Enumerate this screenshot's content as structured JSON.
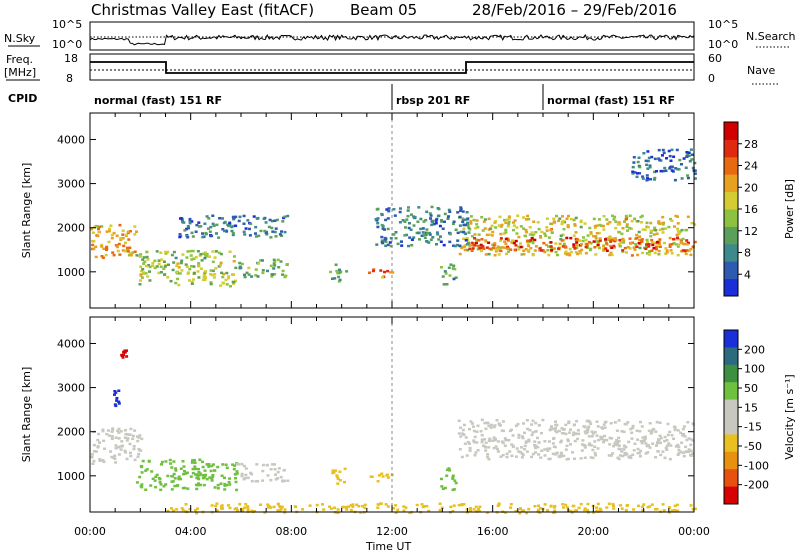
{
  "header": {
    "station": "Christmas Valley East (fitACF)",
    "beam": "Beam 05",
    "dates": "28/Feb/2016 – 29/Feb/2016"
  },
  "strip_sky": {
    "left_label": "N.Sky",
    "right_label": "N.Search",
    "left_top": "10^5",
    "left_bot": "10^0",
    "right_top": "10^5",
    "right_bot": "10^0"
  },
  "strip_freq": {
    "left_label": "Freq.",
    "left_unit": "[MHz]",
    "left_top": "18",
    "left_bot": "8",
    "right_label": "Nave",
    "right_top": "60",
    "right_bot": "0"
  },
  "cpid": {
    "label": "CPID",
    "modes": [
      {
        "name": "normal (fast) 151 RF",
        "start_h": 0,
        "end_h": 12
      },
      {
        "name": "rbsp 201 RF",
        "start_h": 12,
        "end_h": 18
      },
      {
        "name": "normal (fast) 151 RF",
        "start_h": 18,
        "end_h": 24
      }
    ]
  },
  "x_axis": {
    "label": "Time UT",
    "ticks": [
      "00:00",
      "04:00",
      "08:00",
      "12:00",
      "16:00",
      "20:00",
      "00:00"
    ]
  },
  "chart_data": [
    {
      "type": "heatmap",
      "panel": "power",
      "ylabel": "Slant Range [km]",
      "yticks": [
        1000,
        2000,
        3000,
        4000
      ],
      "ylim": [
        180,
        4600
      ],
      "xlim_hours": [
        0,
        24
      ],
      "colorbar": {
        "label": "Power [dB]",
        "ticks": [
          "4",
          "8",
          "12",
          "16",
          "20",
          "24",
          "28"
        ],
        "colors": [
          "#1a2fd8",
          "#2c5bb0",
          "#3c8a8c",
          "#5aa05a",
          "#8cc240",
          "#d4cc30",
          "#e8a020",
          "#e86a10",
          "#e02a10",
          "#d00000"
        ]
      },
      "regions": [
        {
          "t": [
            0.0,
            1.8
          ],
          "r": [
            1300,
            2100
          ],
          "level": 0.65
        },
        {
          "t": [
            1.8,
            5.8
          ],
          "r": [
            700,
            1500
          ],
          "level": 0.45
        },
        {
          "t": [
            5.8,
            7.8
          ],
          "r": [
            900,
            1300
          ],
          "level": 0.35
        },
        {
          "t": [
            9.5,
            10.2
          ],
          "r": [
            800,
            1200
          ],
          "level": 0.35
        },
        {
          "t": [
            11.0,
            12.0
          ],
          "r": [
            900,
            1100
          ],
          "level": 0.75
        },
        {
          "t": [
            13.9,
            14.5
          ],
          "r": [
            700,
            1200
          ],
          "level": 0.3
        },
        {
          "t": [
            14.6,
            24.0
          ],
          "r": [
            1400,
            2300
          ],
          "level": 0.55
        },
        {
          "t": [
            15.0,
            24.0
          ],
          "r": [
            1500,
            1800
          ],
          "level": 0.85
        },
        {
          "t": [
            3.5,
            8.0
          ],
          "r": [
            1800,
            2300
          ],
          "level": 0.2
        },
        {
          "t": [
            11.3,
            15.0
          ],
          "r": [
            1600,
            2500
          ],
          "level": 0.2
        },
        {
          "t": [
            21.5,
            24.0
          ],
          "r": [
            3100,
            3800
          ],
          "level": 0.15
        }
      ]
    },
    {
      "type": "heatmap",
      "panel": "velocity",
      "ylabel": "Slant Range [km]",
      "yticks": [
        1000,
        2000,
        3000,
        4000
      ],
      "ylim": [
        180,
        4600
      ],
      "xlim_hours": [
        0,
        24
      ],
      "colorbar": {
        "label": "Velocity [m s⁻¹]",
        "ticks": [
          "200",
          "100",
          "50",
          "15",
          "-15",
          "-50",
          "-100",
          "-200"
        ],
        "colors": [
          "#1a2fd8",
          "#2c6a80",
          "#3c9040",
          "#70c040",
          "#c8c8c0",
          "#c8c8c0",
          "#e8c020",
          "#e89010",
          "#e85010",
          "#d80000"
        ]
      },
      "regions": [
        {
          "t": [
            0.0,
            2.0
          ],
          "r": [
            1300,
            2100
          ],
          "color": "#c8c8c0"
        },
        {
          "t": [
            1.8,
            5.8
          ],
          "r": [
            700,
            1400
          ],
          "color": "#70c040"
        },
        {
          "t": [
            5.8,
            7.8
          ],
          "r": [
            900,
            1300
          ],
          "color": "#c8c8c0"
        },
        {
          "t": [
            9.5,
            10.1
          ],
          "r": [
            800,
            1200
          ],
          "color": "#e8c020"
        },
        {
          "t": [
            11.0,
            12.0
          ],
          "r": [
            900,
            1100
          ],
          "color": "#e8c020"
        },
        {
          "t": [
            13.9,
            14.5
          ],
          "r": [
            700,
            1200
          ],
          "color": "#70c040"
        },
        {
          "t": [
            14.6,
            24.0
          ],
          "r": [
            1400,
            2300
          ],
          "color": "#c8c8c0"
        },
        {
          "t": [
            0.9,
            1.2
          ],
          "r": [
            2600,
            3000
          ],
          "color": "#1a2fd8"
        },
        {
          "t": [
            1.2,
            1.4
          ],
          "r": [
            3700,
            3900
          ],
          "color": "#d80000"
        },
        {
          "t": [
            3.0,
            24.0
          ],
          "r": [
            180,
            400
          ],
          "color": "#e8c020"
        }
      ]
    }
  ]
}
